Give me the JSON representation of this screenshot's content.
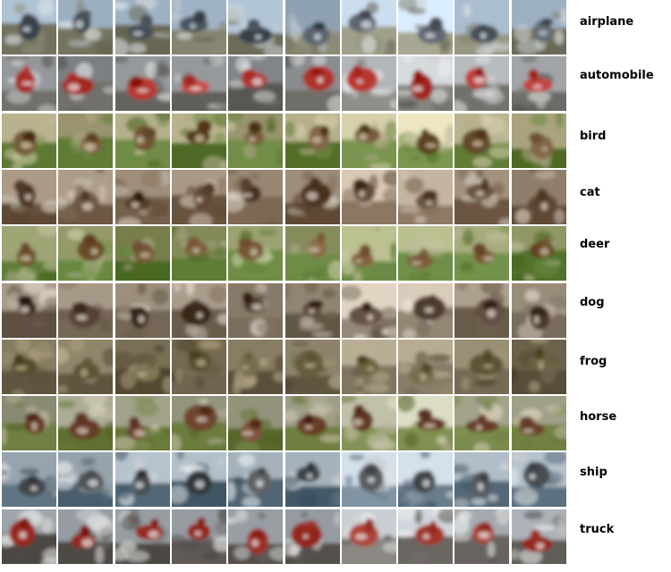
{
  "classes": [
    {
      "label": "airplane",
      "palette": {
        "sky": "#9fb2c4",
        "ground": "#7a7a66",
        "subject": "#4e5660",
        "accent": "#d9dee3"
      }
    },
    {
      "label": "automobile",
      "palette": {
        "sky": "#8f9295",
        "ground": "#5e5d58",
        "subject": "#b3332d",
        "accent": "#e2e3e4"
      }
    },
    {
      "label": "bird",
      "palette": {
        "sky": "#a8a37d",
        "ground": "#5f7a34",
        "subject": "#6d5132",
        "accent": "#c9c1a3"
      }
    },
    {
      "label": "cat",
      "palette": {
        "sky": "#9a8a76",
        "ground": "#6f5a45",
        "subject": "#5a4330",
        "accent": "#d8cfc2"
      }
    },
    {
      "label": "deer",
      "palette": {
        "sky": "#8b9160",
        "ground": "#5b7a33",
        "subject": "#7b5a3a",
        "accent": "#c2bfa0"
      }
    },
    {
      "label": "dog",
      "palette": {
        "sky": "#9c8e7c",
        "ground": "#6b5d4c",
        "subject": "#4c3a2c",
        "accent": "#dcd3c6"
      }
    },
    {
      "label": "frog",
      "palette": {
        "sky": "#7d7258",
        "ground": "#5c523d",
        "subject": "#6a6242",
        "accent": "#b3a685"
      }
    },
    {
      "label": "horse",
      "palette": {
        "sky": "#9a9a82",
        "ground": "#6a7a3c",
        "subject": "#6a3f2a",
        "accent": "#cfc6b2"
      }
    },
    {
      "label": "ship",
      "palette": {
        "sky": "#aab6c0",
        "ground": "#4f6372",
        "subject": "#4a4e52",
        "accent": "#e0e4e7"
      }
    },
    {
      "label": "truck",
      "palette": {
        "sky": "#9aa0a6",
        "ground": "#5a5652",
        "subject": "#a4362c",
        "accent": "#e3e3e1"
      }
    }
  ]
}
